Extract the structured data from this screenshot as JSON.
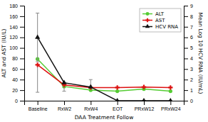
{
  "chart_data": {
    "type": "line",
    "categories": [
      "Baseline",
      "RxW2",
      "RxW4",
      "EOT",
      "PRxW12",
      "PRxW24"
    ],
    "xlabel": "DAA Treatment Follow",
    "ylabel": "ALT and AST (IU/L)",
    "y2label": "Mean Log 10 HCV RNA (IU/mL)",
    "ylim": [
      0,
      180
    ],
    "yticks": [
      0,
      20,
      40,
      60,
      80,
      100,
      120,
      140,
      160,
      180
    ],
    "y2lim": [
      0,
      9
    ],
    "y2ticks": [
      0,
      1,
      2,
      3,
      4,
      5,
      6,
      7,
      8,
      9
    ],
    "grid": false,
    "legend": "upper right",
    "series": [
      {
        "name": "ALT",
        "color": "#55cc33",
        "marker": "circle",
        "values": [
          79,
          27,
          20,
          18,
          22,
          18
        ]
      },
      {
        "name": "AST",
        "color": "#dd1111",
        "marker": "plus",
        "values": [
          68,
          30,
          25,
          25,
          26,
          25
        ],
        "error_low": [
          52,
          12,
          0,
          0,
          0,
          0
        ],
        "error_high": [
          0,
          0,
          0,
          0,
          0,
          0
        ]
      },
      {
        "name": "HCV RNA",
        "color": "#111111",
        "marker": "triangle",
        "axis": "y2",
        "values": [
          6.0,
          1.7,
          1.3,
          0.0,
          0.0,
          0.0
        ],
        "error_low": [
          2.3,
          0.0,
          0.0,
          0.0,
          0.0,
          0.0
        ],
        "error_high": [
          2.3,
          0.0,
          0.7,
          0.0,
          0.0,
          0.0
        ]
      }
    ]
  }
}
